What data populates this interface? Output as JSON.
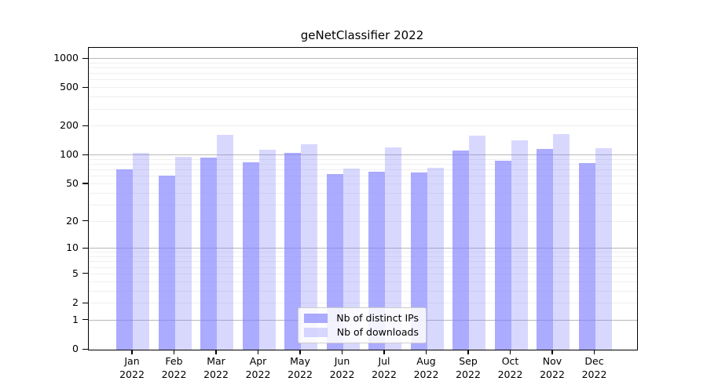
{
  "title": "geNetClassifier 2022",
  "chart_data": {
    "type": "bar",
    "title": "geNetClassifier 2022",
    "scale": "log10(value+1)",
    "months": [
      "Jan",
      "Feb",
      "Mar",
      "Apr",
      "May",
      "Jun",
      "Jul",
      "Aug",
      "Sep",
      "Oct",
      "Nov",
      "Dec"
    ],
    "year": "2022",
    "series": [
      {
        "name": "Nb of distinct IPs",
        "color": "rgba(127,127,255,0.66)",
        "values": [
          72,
          62,
          95,
          85,
          106,
          64,
          68,
          66,
          112,
          88,
          117,
          83
        ]
      },
      {
        "name": "Nb of downloads",
        "color": "rgba(127,127,255,0.30)",
        "values": [
          107,
          97,
          165,
          115,
          130,
          73,
          122,
          74,
          160,
          143,
          168,
          120
        ]
      }
    ],
    "y_ticks": [
      1000,
      500,
      200,
      100,
      50,
      20,
      10,
      5,
      2,
      1,
      0
    ],
    "ylim": [
      0,
      1300
    ],
    "grid": true,
    "legend_position": "bottom-center"
  },
  "colors": {
    "bar_base": "#7f7fff",
    "grid_major": "#b8b8b8",
    "grid_minor": "#efefef",
    "axis": "#000000",
    "legend_border": "#cccccc",
    "background": "#ffffff"
  }
}
